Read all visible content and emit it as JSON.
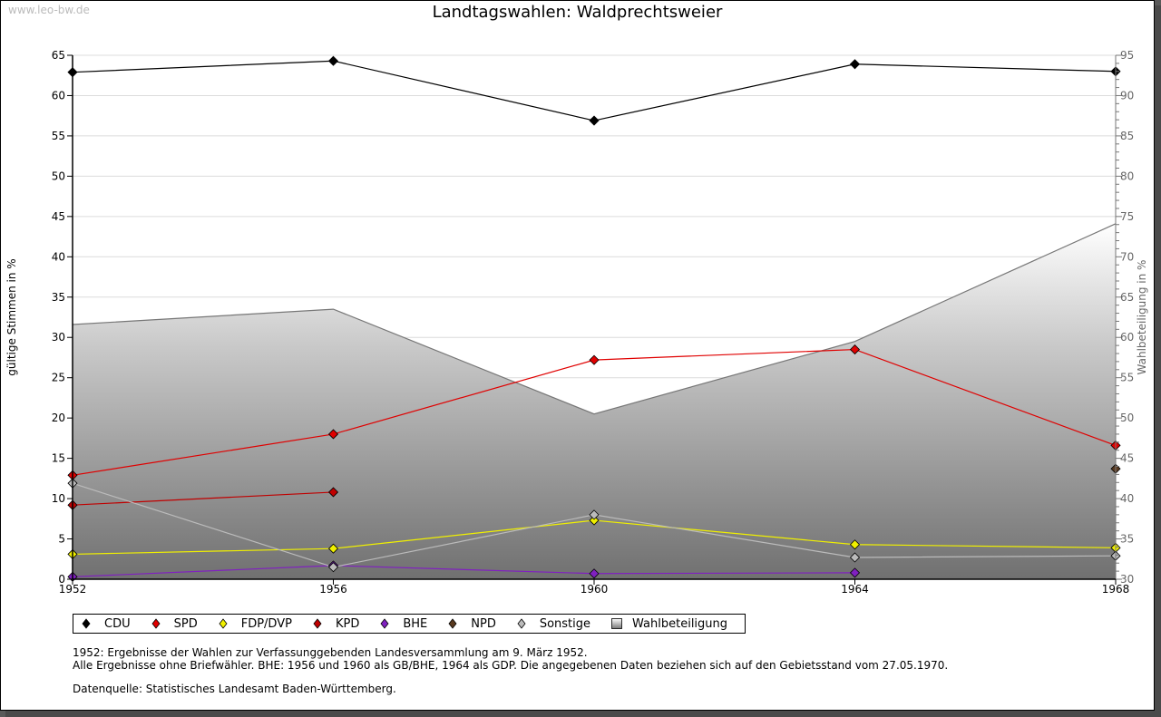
{
  "watermark": "www.leo-bw.de",
  "chart_data": {
    "type": "line",
    "title": "Landtagswahlen: Waldprechtsweier",
    "ylabel": "gültige Stimmen in %",
    "y2label": "Wahlbeteiligung in %",
    "xlabel": "",
    "x": [
      1952,
      1956,
      1960,
      1964,
      1968
    ],
    "x_ticks": [
      "1952",
      "1956",
      "1960",
      "1964",
      "1968"
    ],
    "ylim": [
      0,
      65
    ],
    "y_ticks": [
      "0",
      "5",
      "10",
      "15",
      "20",
      "25",
      "30",
      "35",
      "40",
      "45",
      "50",
      "55",
      "60",
      "65"
    ],
    "y2lim": [
      30,
      95
    ],
    "y2_ticks": [
      "30",
      "35",
      "40",
      "45",
      "50",
      "55",
      "60",
      "65",
      "70",
      "75",
      "80",
      "85",
      "90",
      "95"
    ],
    "grid": true,
    "legend_position": "bottom",
    "series": [
      {
        "name": "CDU",
        "color": "#000000",
        "values": [
          62.9,
          64.3,
          56.9,
          63.9,
          63.0
        ]
      },
      {
        "name": "SPD",
        "color": "#e00000",
        "values": [
          12.9,
          18.0,
          27.2,
          28.5,
          16.6
        ]
      },
      {
        "name": "FDP/DVP",
        "color": "#f0f000",
        "values": [
          3.1,
          3.8,
          7.3,
          4.3,
          3.9
        ]
      },
      {
        "name": "KPD",
        "color": "#c00000",
        "values": [
          9.2,
          10.8,
          null,
          null,
          null
        ]
      },
      {
        "name": "BHE",
        "color": "#8020c0",
        "values": [
          0.3,
          1.7,
          0.7,
          0.8,
          null
        ]
      },
      {
        "name": "NPD",
        "color": "#5a3a20",
        "values": [
          null,
          null,
          null,
          null,
          13.7
        ]
      },
      {
        "name": "Sonstige",
        "color": "#bbbbbb",
        "values": [
          11.9,
          1.5,
          8.0,
          2.7,
          2.9
        ]
      }
    ],
    "area_series": {
      "name": "Wahlbeteiligung",
      "axis": "right",
      "values": [
        61.6,
        63.5,
        50.5,
        59.5,
        74.1
      ]
    }
  },
  "notes": {
    "line1": "1952: Ergebnisse der Wahlen zur Verfassunggebenden Landesversammlung am 9. März 1952.",
    "line2": "Alle Ergebnisse ohne Briefwähler. BHE: 1956 und 1960 als GB/BHE, 1964 als GDP. Die angegebenen Daten beziehen sich auf den Gebietsstand vom 27.05.1970.",
    "source": "Datenquelle: Statistisches Landesamt Baden-Württemberg."
  }
}
